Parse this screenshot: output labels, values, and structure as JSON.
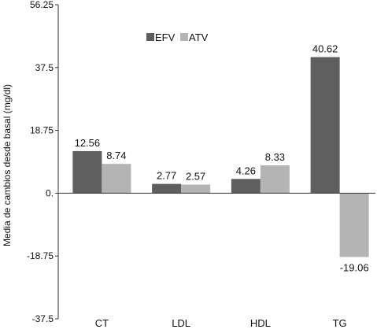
{
  "chart_data": {
    "type": "bar",
    "categories": [
      "CT",
      "LDL",
      "HDL",
      "TG"
    ],
    "series": [
      {
        "name": "EFV",
        "values": [
          12.56,
          2.77,
          4.26,
          40.62
        ],
        "labels": [
          "12.56",
          "2.77",
          "4.26",
          "40.62"
        ],
        "color": "#5f5f5f"
      },
      {
        "name": "ATV",
        "values": [
          8.74,
          2.57,
          8.33,
          -19.06
        ],
        "labels": [
          "8.74",
          "2.57",
          "8.33",
          "-19.06"
        ],
        "color": "#b4b4b4"
      }
    ],
    "ylabel": "Media de cambios desde basal (mg/dl)",
    "xlabel": "",
    "title": "",
    "ylim": [
      -37.5,
      56.25
    ],
    "yticks": [
      56.25,
      37.5,
      18.75,
      0,
      -18.75,
      -37.5
    ],
    "ytick_labels": [
      "56.25",
      "37.5",
      "18.75",
      "0.",
      "-18.75",
      "-37.5"
    ],
    "legend": {
      "position": "top-left",
      "entries": [
        "EFV",
        "ATV"
      ]
    },
    "grid": false
  }
}
